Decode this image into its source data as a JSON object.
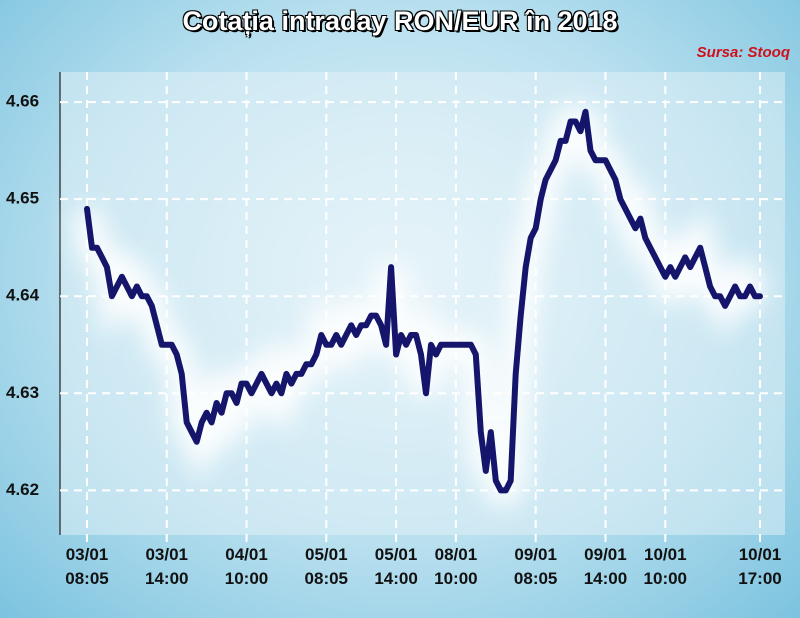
{
  "chart_data": {
    "type": "line",
    "title": "Cotația intraday RON/EUR în 2018",
    "source": "Sursa: Stooq",
    "categories": [
      "03/01\n08:05",
      null,
      null,
      null,
      null,
      null,
      null,
      null,
      null,
      null,
      null,
      null,
      null,
      null,
      null,
      null,
      "03/01\n14:00",
      null,
      null,
      null,
      null,
      null,
      null,
      null,
      null,
      null,
      null,
      null,
      null,
      null,
      null,
      null,
      "04/01\n10:00",
      null,
      null,
      null,
      null,
      null,
      null,
      null,
      null,
      null,
      null,
      null,
      null,
      null,
      null,
      null,
      "05/01\n08:05",
      null,
      null,
      null,
      null,
      null,
      null,
      null,
      null,
      null,
      null,
      null,
      null,
      null,
      "05/01\n14:00",
      null,
      null,
      null,
      null,
      null,
      null,
      null,
      null,
      null,
      null,
      null,
      "08/01\n10:00",
      null,
      null,
      null,
      null,
      null,
      null,
      null,
      null,
      null,
      null,
      null,
      null,
      null,
      null,
      null,
      "09/01\n08:05",
      null,
      null,
      null,
      null,
      null,
      null,
      null,
      null,
      null,
      null,
      null,
      null,
      null,
      "09/01\n14:00",
      null,
      null,
      null,
      null,
      null,
      null,
      null,
      null,
      null,
      null,
      null,
      "10/01\n10:00",
      null,
      null,
      null,
      null,
      null,
      null,
      null,
      null,
      null,
      null,
      null,
      null,
      null,
      null,
      null,
      null,
      null,
      null,
      "10/01\n17:00"
    ],
    "values": [
      4.649,
      4.645,
      4.645,
      4.644,
      4.643,
      4.64,
      4.641,
      4.642,
      4.641,
      4.64,
      4.641,
      4.64,
      4.64,
      4.639,
      4.637,
      4.635,
      4.635,
      4.635,
      4.634,
      4.632,
      4.627,
      4.626,
      4.625,
      4.627,
      4.628,
      4.627,
      4.629,
      4.628,
      4.63,
      4.63,
      4.629,
      4.631,
      4.631,
      4.63,
      4.631,
      4.632,
      4.631,
      4.63,
      4.631,
      4.63,
      4.632,
      4.631,
      4.632,
      4.632,
      4.633,
      4.633,
      4.634,
      4.636,
      4.635,
      4.635,
      4.636,
      4.635,
      4.636,
      4.637,
      4.636,
      4.637,
      4.637,
      4.638,
      4.638,
      4.637,
      4.635,
      4.643,
      4.634,
      4.636,
      4.635,
      4.636,
      4.636,
      4.634,
      4.63,
      4.635,
      4.634,
      4.635,
      4.635,
      4.635,
      4.635,
      4.635,
      4.635,
      4.635,
      4.634,
      4.626,
      4.622,
      4.626,
      4.621,
      4.62,
      4.62,
      4.621,
      4.632,
      4.638,
      4.643,
      4.646,
      4.647,
      4.65,
      4.652,
      4.653,
      4.654,
      4.656,
      4.656,
      4.658,
      4.658,
      4.657,
      4.659,
      4.655,
      4.654,
      4.654,
      4.654,
      4.653,
      4.652,
      4.65,
      4.649,
      4.648,
      4.647,
      4.648,
      4.646,
      4.645,
      4.644,
      4.643,
      4.642,
      4.643,
      4.642,
      4.643,
      4.644,
      4.643,
      4.644,
      4.645,
      4.643,
      4.641,
      4.64,
      4.64,
      4.639,
      4.64,
      4.641,
      4.64,
      4.64,
      4.641,
      4.64,
      4.64
    ],
    "color": "#15166b",
    "ylim": [
      4.6154,
      4.6631
    ],
    "yticks": [
      4.62,
      4.63,
      4.64,
      4.65,
      4.66
    ],
    "grid": true
  }
}
